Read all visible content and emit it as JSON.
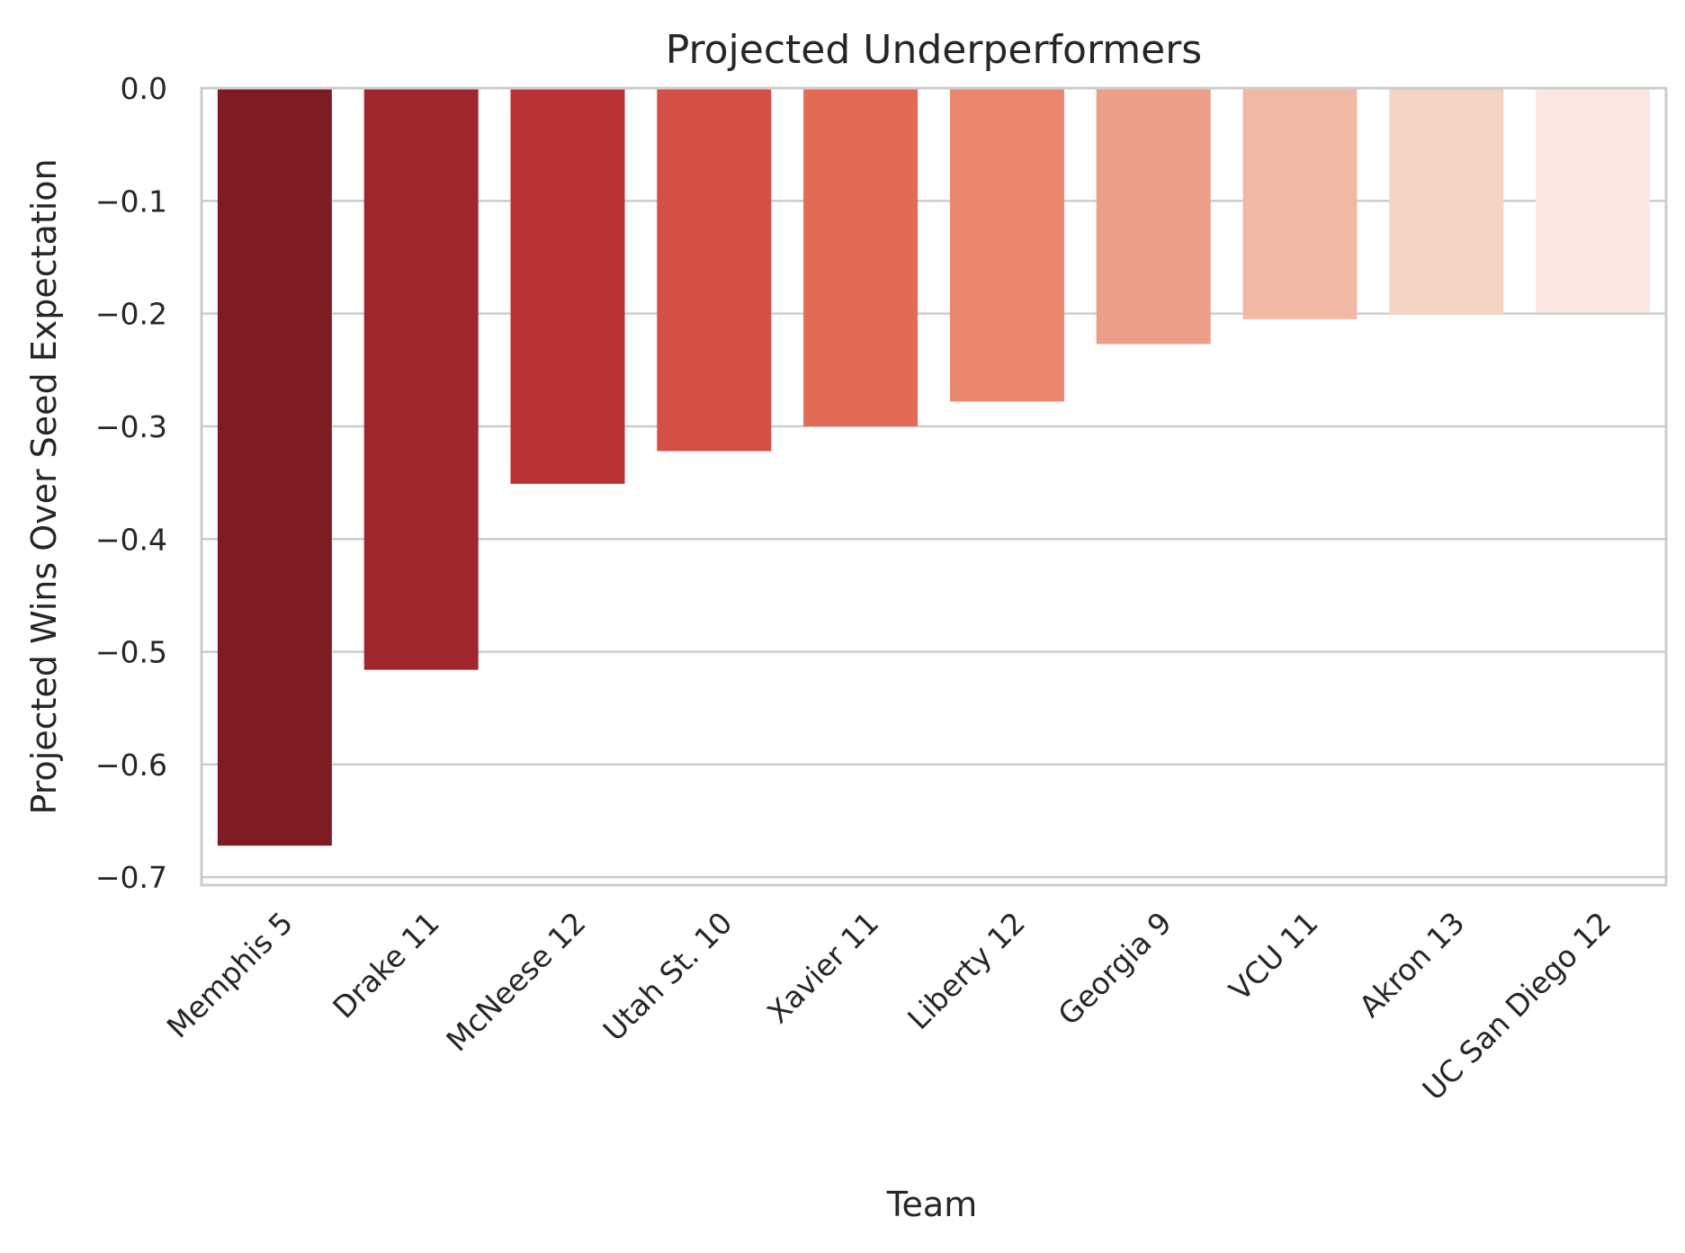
{
  "chart_data": {
    "type": "bar",
    "title": "Projected Underperformers",
    "xlabel": "Team",
    "ylabel": "Projected Wins Over Seed Expectation",
    "categories": [
      "Memphis 5",
      "Drake 11",
      "McNeese 12",
      "Utah St. 10",
      "Xavier 11",
      "Liberty 12",
      "Georgia 9",
      "VCU 11",
      "Akron 13",
      "UC San Diego 12"
    ],
    "values": [
      -0.672,
      -0.516,
      -0.351,
      -0.322,
      -0.3,
      -0.278,
      -0.227,
      -0.205,
      -0.201,
      -0.199
    ],
    "colors": [
      "#7f1b22",
      "#a0262d",
      "#ba3234",
      "#d44f45",
      "#e36b55",
      "#e9876d",
      "#ec9f88",
      "#f1b8a3",
      "#f4d4c5",
      "#fbe7e1"
    ],
    "ylim": [
      -0.707,
      0.0
    ],
    "yticks": [
      0.0,
      -0.1,
      -0.2,
      -0.3,
      -0.4,
      -0.5,
      -0.6,
      -0.7
    ],
    "ytick_labels": [
      "0.0",
      "−0.1",
      "−0.2",
      "−0.3",
      "−0.4",
      "−0.5",
      "−0.6",
      "−0.7"
    ],
    "grid": true,
    "legend": "none"
  }
}
